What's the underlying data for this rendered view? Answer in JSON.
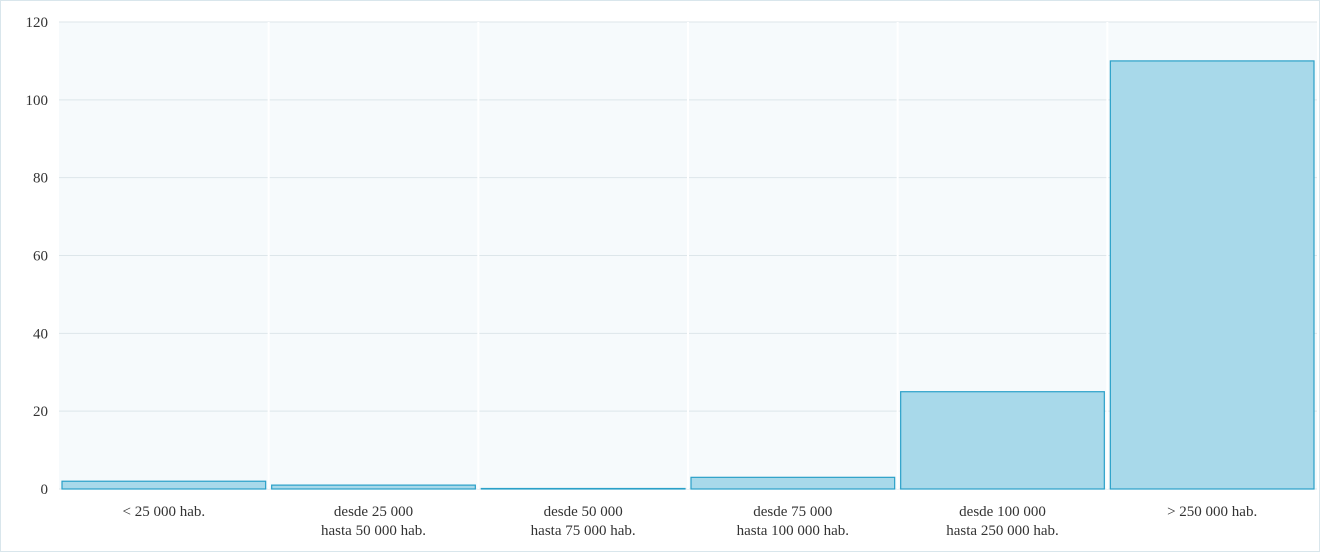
{
  "chart_data": {
    "type": "bar",
    "title": "",
    "xlabel": "",
    "ylabel": "",
    "categories": [
      [
        "< 25 000 hab."
      ],
      [
        "desde 25 000",
        "hasta 50 000 hab."
      ],
      [
        "desde 50 000",
        "hasta 75 000 hab."
      ],
      [
        "desde 75 000",
        "hasta 100 000 hab."
      ],
      [
        "desde 100 000",
        "hasta 250 000 hab."
      ],
      [
        "> 250 000 hab."
      ]
    ],
    "values": [
      2,
      1,
      0,
      3,
      25,
      110
    ],
    "ylim": [
      0,
      120
    ],
    "yticks": [
      0,
      20,
      40,
      60,
      80,
      100,
      120
    ],
    "grid": true,
    "legend": "none",
    "colors": {
      "bar_fill": "#a8d9ea",
      "bar_stroke": "#2aa0c8",
      "plot_bg": "#f6fafc",
      "grid": "#dde6ea"
    }
  }
}
